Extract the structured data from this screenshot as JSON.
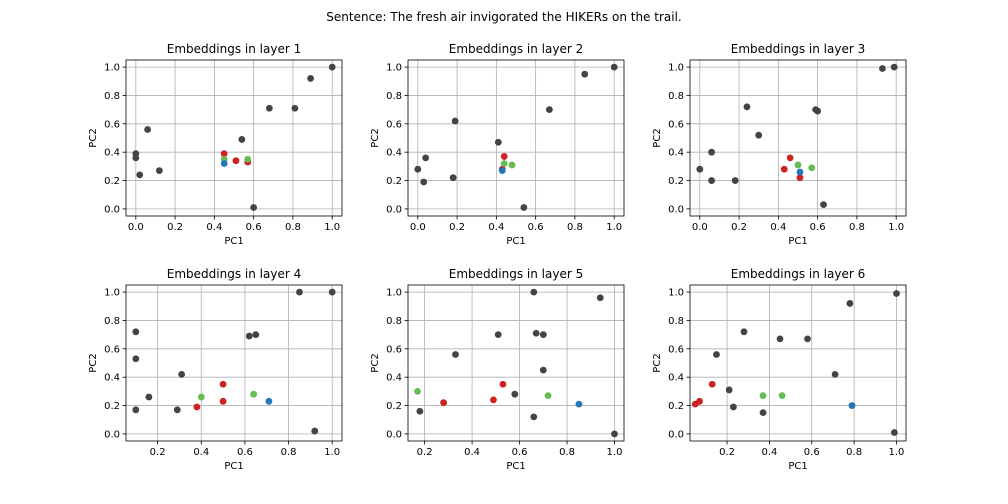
{
  "suptitle": "Sentence: The fresh air invigorated the HIKERs on the trail.",
  "colors": {
    "other": "#444444",
    "red": "#cc2222",
    "green": "#66bb55",
    "blue": "#2277bb"
  },
  "chart_data": [
    {
      "type": "scatter",
      "title": "Embeddings in layer 1",
      "xlabel": "PC1",
      "ylabel": "PC2",
      "xlim": [
        -0.05,
        1.05
      ],
      "ylim": [
        -0.05,
        1.05
      ],
      "xticks": [
        "0.0",
        "0.2",
        "0.4",
        "0.6",
        "0.8",
        "1.0"
      ],
      "yticks": [
        "0.0",
        "0.2",
        "0.4",
        "0.6",
        "0.8",
        "1.0"
      ],
      "xtick_values": [
        0,
        0.2,
        0.4,
        0.6,
        0.8,
        1.0
      ],
      "ytick_values": [
        0,
        0.2,
        0.4,
        0.6,
        0.8,
        1.0
      ],
      "grid": true,
      "points": {
        "other": [
          [
            0.0,
            0.39
          ],
          [
            0.0,
            0.36
          ],
          [
            0.02,
            0.24
          ],
          [
            0.06,
            0.56
          ],
          [
            0.12,
            0.27
          ],
          [
            0.54,
            0.49
          ],
          [
            0.6,
            0.01
          ],
          [
            0.68,
            0.71
          ],
          [
            0.81,
            0.71
          ],
          [
            0.89,
            0.92
          ],
          [
            1.0,
            1.0
          ]
        ],
        "red": [
          [
            0.45,
            0.39
          ],
          [
            0.51,
            0.34
          ],
          [
            0.57,
            0.33
          ]
        ],
        "green": [
          [
            0.45,
            0.35
          ],
          [
            0.57,
            0.35
          ]
        ],
        "blue": [
          [
            0.45,
            0.32
          ]
        ]
      }
    },
    {
      "type": "scatter",
      "title": "Embeddings in layer 2",
      "xlabel": "PC1",
      "ylabel": "PC2",
      "xlim": [
        -0.05,
        1.05
      ],
      "ylim": [
        -0.05,
        1.05
      ],
      "xticks": [
        "0.0",
        "0.2",
        "0.4",
        "0.6",
        "0.8",
        "1.0"
      ],
      "yticks": [
        "0.0",
        "0.2",
        "0.4",
        "0.6",
        "0.8",
        "1.0"
      ],
      "xtick_values": [
        0,
        0.2,
        0.4,
        0.6,
        0.8,
        1.0
      ],
      "ytick_values": [
        0,
        0.2,
        0.4,
        0.6,
        0.8,
        1.0
      ],
      "grid": true,
      "points": {
        "other": [
          [
            0.0,
            0.28
          ],
          [
            0.03,
            0.19
          ],
          [
            0.04,
            0.36
          ],
          [
            0.18,
            0.22
          ],
          [
            0.19,
            0.62
          ],
          [
            0.41,
            0.47
          ],
          [
            0.54,
            0.01
          ],
          [
            0.67,
            0.7
          ],
          [
            0.85,
            0.95
          ],
          [
            1.0,
            1.0
          ]
        ],
        "red": [
          [
            0.44,
            0.37
          ],
          [
            0.43,
            0.28
          ]
        ],
        "green": [
          [
            0.44,
            0.32
          ],
          [
            0.48,
            0.31
          ]
        ],
        "blue": [
          [
            0.43,
            0.27
          ]
        ]
      }
    },
    {
      "type": "scatter",
      "title": "Embeddings in layer 3",
      "xlabel": "PC1",
      "ylabel": "PC2",
      "xlim": [
        -0.05,
        1.05
      ],
      "ylim": [
        -0.05,
        1.05
      ],
      "xticks": [
        "0.0",
        "0.2",
        "0.4",
        "0.6",
        "0.8",
        "1.0"
      ],
      "yticks": [
        "0.0",
        "0.2",
        "0.4",
        "0.6",
        "0.8",
        "1.0"
      ],
      "xtick_values": [
        0,
        0.2,
        0.4,
        0.6,
        0.8,
        1.0
      ],
      "ytick_values": [
        0,
        0.2,
        0.4,
        0.6,
        0.8,
        1.0
      ],
      "grid": true,
      "points": {
        "other": [
          [
            0.0,
            0.28
          ],
          [
            0.06,
            0.4
          ],
          [
            0.06,
            0.2
          ],
          [
            0.18,
            0.2
          ],
          [
            0.24,
            0.72
          ],
          [
            0.3,
            0.52
          ],
          [
            0.59,
            0.7
          ],
          [
            0.6,
            0.69
          ],
          [
            0.63,
            0.03
          ],
          [
            0.93,
            0.99
          ],
          [
            0.99,
            1.0
          ]
        ],
        "red": [
          [
            0.46,
            0.36
          ],
          [
            0.43,
            0.28
          ],
          [
            0.51,
            0.22
          ]
        ],
        "green": [
          [
            0.5,
            0.31
          ],
          [
            0.57,
            0.29
          ]
        ],
        "blue": [
          [
            0.51,
            0.26
          ]
        ]
      }
    },
    {
      "type": "scatter",
      "title": "Embeddings in layer 4",
      "xlabel": "PC1",
      "ylabel": "PC2",
      "xlim": [
        0.055,
        1.045
      ],
      "ylim": [
        -0.05,
        1.05
      ],
      "xticks": [
        "0.2",
        "0.4",
        "0.6",
        "0.8",
        "1.0"
      ],
      "yticks": [
        "0.0",
        "0.2",
        "0.4",
        "0.6",
        "0.8",
        "1.0"
      ],
      "xtick_values": [
        0.2,
        0.4,
        0.6,
        0.8,
        1.0
      ],
      "ytick_values": [
        0,
        0.2,
        0.4,
        0.6,
        0.8,
        1.0
      ],
      "grid": true,
      "points": {
        "other": [
          [
            0.1,
            0.72
          ],
          [
            0.1,
            0.53
          ],
          [
            0.1,
            0.17
          ],
          [
            0.16,
            0.26
          ],
          [
            0.29,
            0.17
          ],
          [
            0.31,
            0.42
          ],
          [
            0.62,
            0.69
          ],
          [
            0.65,
            0.7
          ],
          [
            0.85,
            1.0
          ],
          [
            0.92,
            0.02
          ],
          [
            1.0,
            1.0
          ]
        ],
        "red": [
          [
            0.38,
            0.19
          ],
          [
            0.5,
            0.35
          ],
          [
            0.5,
            0.23
          ]
        ],
        "green": [
          [
            0.4,
            0.26
          ],
          [
            0.64,
            0.28
          ]
        ],
        "blue": [
          [
            0.71,
            0.23
          ]
        ]
      }
    },
    {
      "type": "scatter",
      "title": "Embeddings in layer 5",
      "xlabel": "PC1",
      "ylabel": "PC2",
      "xlim": [
        0.13,
        1.04
      ],
      "ylim": [
        -0.05,
        1.05
      ],
      "xticks": [
        "0.2",
        "0.4",
        "0.6",
        "0.8",
        "1.0"
      ],
      "yticks": [
        "0.0",
        "0.2",
        "0.4",
        "0.6",
        "0.8",
        "1.0"
      ],
      "xtick_values": [
        0.2,
        0.4,
        0.6,
        0.8,
        1.0
      ],
      "ytick_values": [
        0,
        0.2,
        0.4,
        0.6,
        0.8,
        1.0
      ],
      "grid": true,
      "points": {
        "other": [
          [
            0.18,
            0.16
          ],
          [
            0.33,
            0.56
          ],
          [
            0.51,
            0.7
          ],
          [
            0.58,
            0.28
          ],
          [
            0.66,
            1.0
          ],
          [
            0.67,
            0.71
          ],
          [
            0.7,
            0.7
          ],
          [
            0.7,
            0.45
          ],
          [
            0.66,
            0.12
          ],
          [
            0.94,
            0.96
          ],
          [
            1.0,
            0.0
          ]
        ],
        "red": [
          [
            0.28,
            0.22
          ],
          [
            0.49,
            0.24
          ],
          [
            0.53,
            0.35
          ]
        ],
        "green": [
          [
            0.17,
            0.3
          ],
          [
            0.72,
            0.27
          ]
        ],
        "blue": [
          [
            0.85,
            0.21
          ]
        ]
      }
    },
    {
      "type": "scatter",
      "title": "Embeddings in layer 6",
      "xlabel": "PC1",
      "ylabel": "PC2",
      "xlim": [
        0.025,
        1.045
      ],
      "ylim": [
        -0.05,
        1.05
      ],
      "xticks": [
        "0.2",
        "0.4",
        "0.6",
        "0.8",
        "1.0"
      ],
      "yticks": [
        "0.0",
        "0.2",
        "0.4",
        "0.6",
        "0.8",
        "1.0"
      ],
      "xtick_values": [
        0.2,
        0.4,
        0.6,
        0.8,
        1.0
      ],
      "ytick_values": [
        0,
        0.2,
        0.4,
        0.6,
        0.8,
        1.0
      ],
      "grid": true,
      "points": {
        "other": [
          [
            0.15,
            0.56
          ],
          [
            0.21,
            0.31
          ],
          [
            0.23,
            0.19
          ],
          [
            0.28,
            0.72
          ],
          [
            0.37,
            0.15
          ],
          [
            0.45,
            0.67
          ],
          [
            0.58,
            0.67
          ],
          [
            0.71,
            0.42
          ],
          [
            0.78,
            0.92
          ],
          [
            0.99,
            0.01
          ],
          [
            1.0,
            0.99
          ]
        ],
        "red": [
          [
            0.05,
            0.21
          ],
          [
            0.07,
            0.23
          ],
          [
            0.13,
            0.35
          ]
        ],
        "green": [
          [
            0.37,
            0.27
          ],
          [
            0.46,
            0.27
          ]
        ],
        "blue": [
          [
            0.79,
            0.2
          ]
        ]
      }
    }
  ]
}
